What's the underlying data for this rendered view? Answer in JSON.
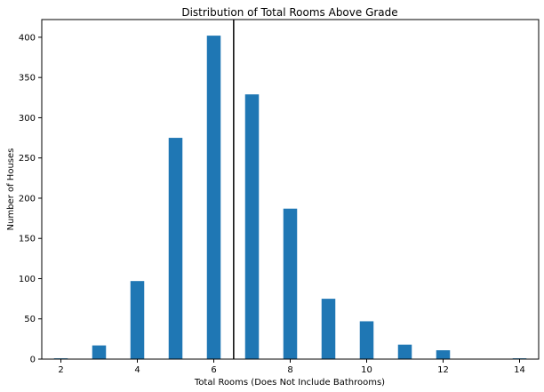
{
  "chart_data": {
    "type": "bar",
    "title": "Distribution of Total Rooms Above Grade",
    "xlabel": "Total Rooms (Does Not Include Bathrooms)",
    "ylabel": "Number of Houses",
    "x": [
      2,
      3,
      4,
      5,
      6,
      7,
      8,
      9,
      10,
      11,
      12,
      14
    ],
    "values": [
      1,
      17,
      97,
      275,
      402,
      329,
      187,
      75,
      47,
      18,
      11,
      1
    ],
    "xlim": [
      1.5,
      14.5
    ],
    "ylim": [
      0,
      422
    ],
    "xticks": [
      2,
      4,
      6,
      8,
      10,
      12,
      14
    ],
    "yticks": [
      0,
      50,
      100,
      150,
      200,
      250,
      300,
      350,
      400
    ],
    "bar_color": "#1f77b4",
    "reference_line": {
      "x": 6.52,
      "color": "#000000"
    },
    "grid": false
  }
}
